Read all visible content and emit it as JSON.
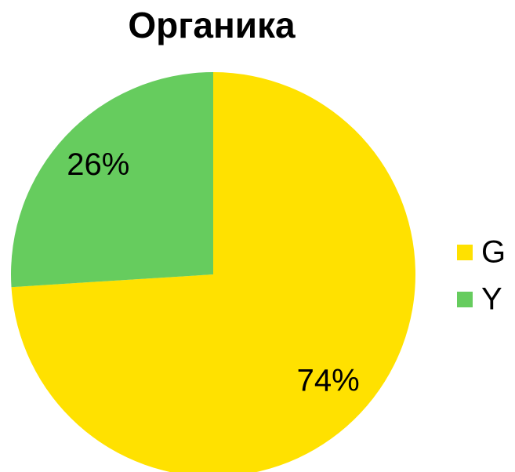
{
  "chart_data": {
    "type": "pie",
    "title": "Органика",
    "categories": [
      "G",
      "Y"
    ],
    "series": [
      {
        "values": [
          74,
          26
        ],
        "value_labels": [
          "74%",
          "26%"
        ],
        "colors": [
          "#ffe100",
          "#66cc5e"
        ]
      }
    ],
    "legend": "right"
  }
}
